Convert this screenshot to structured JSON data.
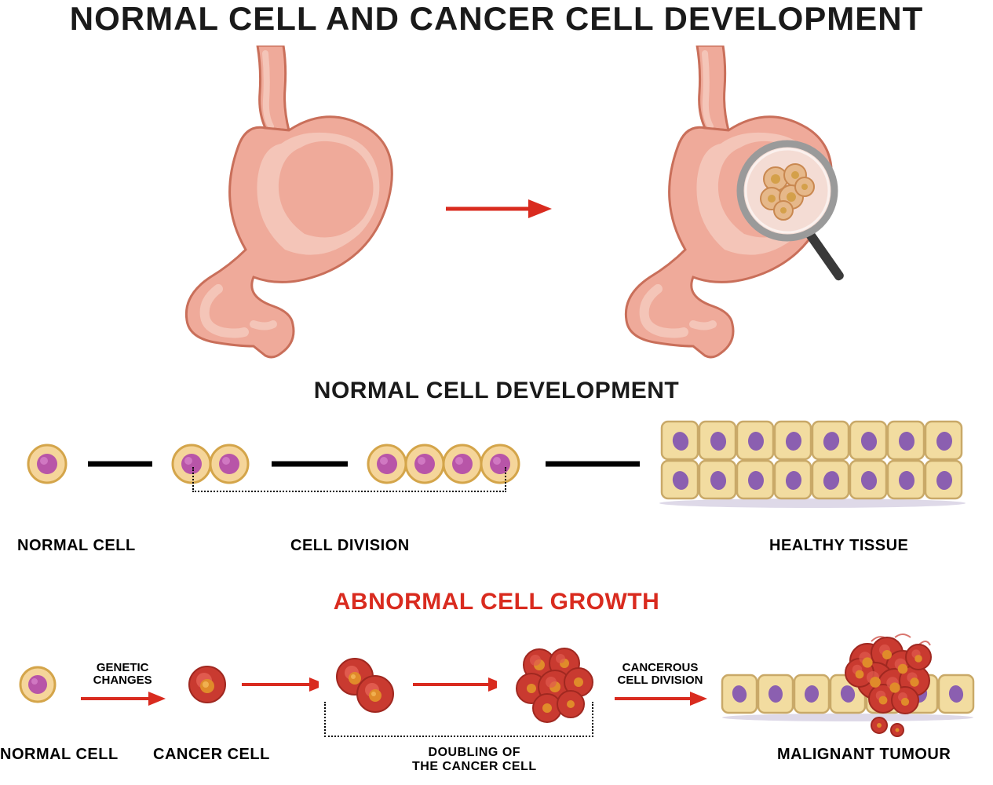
{
  "title": "NORMAL CELL AND CANCER CELL DEVELOPMENT",
  "title_fontsize": 42,
  "title_color": "#1a1a1a",
  "colors": {
    "stomach_fill": "#efaa9a",
    "stomach_light": "#f4c5b8",
    "stomach_dark": "#e08b77",
    "stomach_outline": "#c96f5a",
    "red_arrow": "#d92b1f",
    "black_arrow": "#000000",
    "cell_membrane": "#f5d59a",
    "cell_membrane_outline": "#d4a54a",
    "cell_nucleus": "#b855a8",
    "cell_nucleus_light": "#d078c2",
    "tissue_fill": "#f2dca0",
    "tissue_outline": "#c9a968",
    "tissue_nucleus": "#8b5fb0",
    "cancer_fill": "#c93a30",
    "cancer_light": "#e05a4e",
    "cancer_nucleus": "#e08b2a",
    "magnifier_rim": "#9a9a9a",
    "magnifier_handle": "#3a3a3a",
    "background": "#ffffff"
  },
  "normal_section": {
    "heading": "NORMAL CELL DEVELOPMENT",
    "heading_fontsize": 30,
    "heading_color": "#1a1a1a",
    "stages": {
      "s1": "NORMAL CELL",
      "s2_bracket": "CELL DIVISION",
      "s3": "HEALTHY TISSUE"
    },
    "label_fontsize": 20
  },
  "abnormal_section": {
    "heading": "ABNORMAL CELL GROWTH",
    "heading_fontsize": 30,
    "heading_color": "#d92b1f",
    "stages": {
      "s1": "NORMAL CELL",
      "s2": "CANCER CELL",
      "s3_bracket": "DOUBLING OF\nTHE CANCER CELL",
      "s4_arrow": "CANCEROUS\nCELL DIVISION",
      "s1_arrow": "GENETIC CHANGES",
      "s5": "MALIGNANT TUMOUR"
    },
    "label_fontsize": 20
  },
  "layout": {
    "stomach_width": 320,
    "stomach_height": 400,
    "cell_radius": 24,
    "nucleus_radius": 13,
    "tissue_cell_w": 48,
    "tissue_cell_h": 50,
    "tissue_cols": 8,
    "tissue_rows": 2
  }
}
